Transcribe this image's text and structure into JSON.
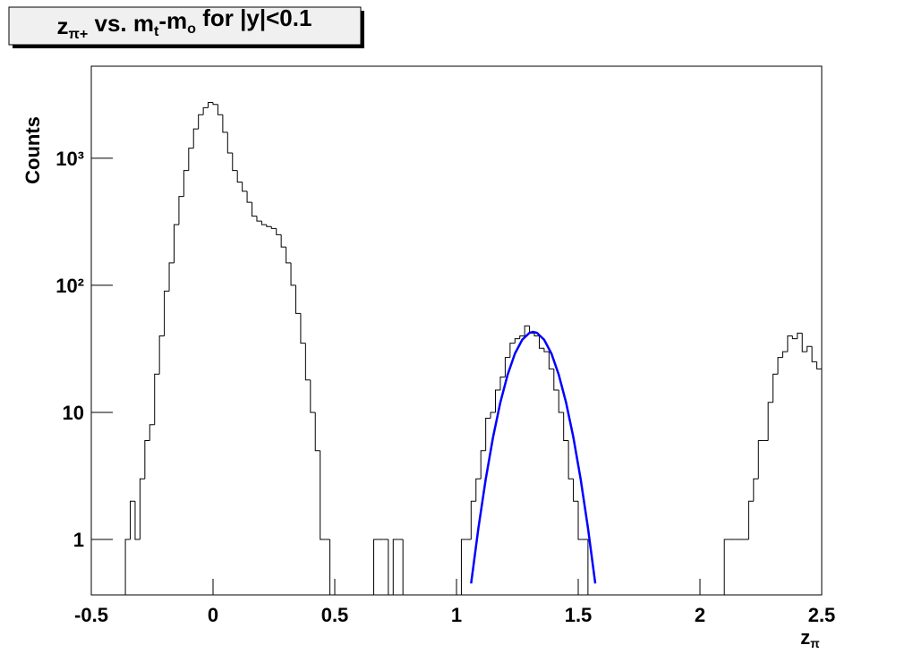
{
  "chart_data": {
    "type": "histogram",
    "title": [
      "z",
      "π+",
      " vs. m",
      "t",
      "-m",
      "o",
      " for |y|<0.1"
    ],
    "xlabel": [
      "z",
      "π"
    ],
    "ylabel": "Counts",
    "color": "#000000",
    "log_y": true,
    "xlim": [
      -0.5,
      2.5
    ],
    "ylim": [
      0.366,
      5300
    ],
    "xticks": [
      -0.5,
      0,
      0.5,
      1,
      1.5,
      2,
      2.5
    ],
    "yticks": [
      1,
      10,
      {
        "value": 100,
        "label": "10²"
      },
      {
        "value": 1000,
        "label": "10³"
      }
    ],
    "bins": [
      -0.5,
      -0.48,
      -0.46,
      -0.44,
      -0.42,
      -0.4,
      -0.38,
      -0.36,
      -0.34,
      -0.32,
      -0.3,
      -0.28,
      -0.26,
      -0.24,
      -0.22,
      -0.2,
      -0.18,
      -0.16,
      -0.14,
      -0.12,
      -0.1,
      -0.08,
      -0.06,
      -0.04,
      -0.02,
      0,
      0.02,
      0.04,
      0.06,
      0.08,
      0.1,
      0.12,
      0.14,
      0.16,
      0.18,
      0.2,
      0.22,
      0.24,
      0.26,
      0.28,
      0.3,
      0.32,
      0.34,
      0.36,
      0.38,
      0.4,
      0.42,
      0.44,
      0.46,
      0.48,
      0.5,
      0.52,
      0.54,
      0.56,
      0.58,
      0.6,
      0.62,
      0.64,
      0.66,
      0.68,
      0.7,
      0.72,
      0.74,
      0.76,
      0.78,
      0.8,
      0.82,
      0.84,
      0.86,
      0.88,
      0.9,
      0.92,
      0.94,
      0.96,
      0.98,
      1,
      1.02,
      1.04,
      1.06,
      1.08,
      1.1,
      1.12,
      1.14,
      1.16,
      1.18,
      1.2,
      1.22,
      1.24,
      1.26,
      1.28,
      1.3,
      1.32,
      1.34,
      1.36,
      1.38,
      1.4,
      1.42,
      1.44,
      1.46,
      1.48,
      1.5,
      1.52,
      1.54,
      1.56,
      1.58,
      1.6,
      1.62,
      1.64,
      1.66,
      1.68,
      1.7,
      1.72,
      1.74,
      1.76,
      1.78,
      1.8,
      1.82,
      1.84,
      1.86,
      1.88,
      1.9,
      1.92,
      1.94,
      1.96,
      1.98,
      2,
      2.02,
      2.04,
      2.06,
      2.08,
      2.1,
      2.12,
      2.14,
      2.16,
      2.18,
      2.2,
      2.22,
      2.24,
      2.26,
      2.28,
      2.3,
      2.32,
      2.34,
      2.36,
      2.38,
      2.4,
      2.42,
      2.44,
      2.46,
      2.48,
      2.5
    ],
    "values": [
      0,
      0,
      0,
      0,
      0,
      0,
      0,
      1,
      2,
      1,
      3,
      6,
      8,
      20,
      40,
      90,
      150,
      300,
      500,
      800,
      1200,
      1700,
      2200,
      2500,
      2750,
      2650,
      2200,
      1600,
      1100,
      800,
      650,
      550,
      450,
      350,
      320,
      300,
      290,
      280,
      250,
      200,
      150,
      100,
      60,
      35,
      18,
      10,
      5,
      1,
      1,
      0,
      0,
      0,
      0,
      0,
      0,
      0,
      0,
      0,
      1,
      1,
      1,
      0,
      1,
      1,
      0,
      0,
      0,
      0,
      0,
      0,
      0,
      0,
      0,
      0,
      0,
      0,
      1,
      1,
      2,
      3,
      5,
      9,
      10,
      15,
      19,
      27,
      35,
      38,
      40,
      48,
      42,
      40,
      32,
      30,
      22,
      15,
      10,
      6,
      3,
      2,
      1,
      1,
      0,
      0,
      0,
      0,
      0,
      0,
      0,
      0,
      0,
      0,
      0,
      0,
      0,
      0,
      0,
      0,
      0,
      0,
      0,
      0,
      0,
      0,
      0,
      0,
      0,
      0,
      0,
      0,
      1,
      1,
      1,
      1,
      1,
      2,
      3,
      6,
      6,
      12,
      20,
      27,
      30,
      40,
      38,
      42,
      30,
      33,
      25,
      22
    ],
    "fit": {
      "color": "#0000ff",
      "x": [
        1.06,
        1.09,
        1.12,
        1.15,
        1.18,
        1.21,
        1.24,
        1.27,
        1.3,
        1.315,
        1.33,
        1.36,
        1.39,
        1.42,
        1.45,
        1.48,
        1.51,
        1.54,
        1.57
      ],
      "values": [
        0.45,
        1.23,
        2.98,
        6.36,
        11.96,
        19.8,
        29.0,
        37.3,
        42.3,
        43,
        42.3,
        37.3,
        29.0,
        19.8,
        11.96,
        6.36,
        2.98,
        1.23,
        0.45
      ]
    }
  }
}
